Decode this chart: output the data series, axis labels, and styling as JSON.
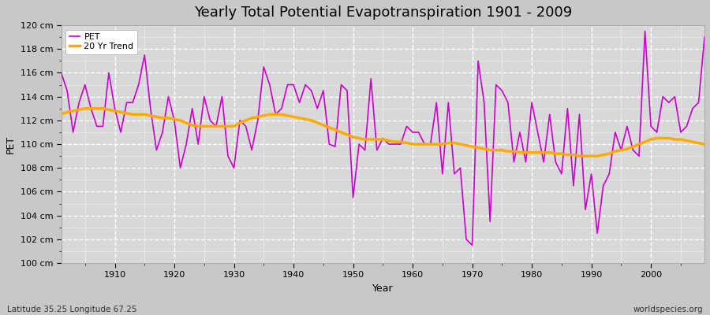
{
  "title": "Yearly Total Potential Evapotranspiration 1901 - 2009",
  "xlabel": "Year",
  "ylabel": "PET",
  "footnote_left": "Latitude 35.25 Longitude 67.25",
  "footnote_right": "worldspecies.org",
  "ylim": [
    100,
    120
  ],
  "ytick_labels": [
    "100 cm",
    "102 cm",
    "104 cm",
    "106 cm",
    "108 cm",
    "110 cm",
    "112 cm",
    "114 cm",
    "116 cm",
    "118 cm",
    "120 cm"
  ],
  "ytick_values": [
    100,
    102,
    104,
    106,
    108,
    110,
    112,
    114,
    116,
    118,
    120
  ],
  "pet_color": "#cc00cc",
  "trend_color": "#ffaa00",
  "outer_bg": "#c8c8c8",
  "plot_bg": "#d8d8d8",
  "grid_color": "#ffffff",
  "years": [
    1901,
    1902,
    1903,
    1904,
    1905,
    1906,
    1907,
    1908,
    1909,
    1910,
    1911,
    1912,
    1913,
    1914,
    1915,
    1916,
    1917,
    1918,
    1919,
    1920,
    1921,
    1922,
    1923,
    1924,
    1925,
    1926,
    1927,
    1928,
    1929,
    1930,
    1931,
    1932,
    1933,
    1934,
    1935,
    1936,
    1937,
    1938,
    1939,
    1940,
    1941,
    1942,
    1943,
    1944,
    1945,
    1946,
    1947,
    1948,
    1949,
    1950,
    1951,
    1952,
    1953,
    1954,
    1955,
    1956,
    1957,
    1958,
    1959,
    1960,
    1961,
    1962,
    1963,
    1964,
    1965,
    1966,
    1967,
    1968,
    1969,
    1970,
    1971,
    1972,
    1973,
    1974,
    1975,
    1976,
    1977,
    1978,
    1979,
    1980,
    1981,
    1982,
    1983,
    1984,
    1985,
    1986,
    1987,
    1988,
    1989,
    1990,
    1991,
    1992,
    1993,
    1994,
    1995,
    1996,
    1997,
    1998,
    1999,
    2000,
    2001,
    2002,
    2003,
    2004,
    2005,
    2006,
    2007,
    2008,
    2009
  ],
  "pet_values": [
    116.0,
    114.5,
    111.0,
    113.5,
    115.0,
    113.0,
    111.5,
    111.5,
    116.0,
    113.0,
    111.0,
    113.5,
    113.5,
    115.0,
    117.5,
    113.0,
    109.5,
    111.0,
    114.0,
    112.0,
    108.0,
    110.0,
    113.0,
    110.0,
    114.0,
    112.0,
    111.5,
    114.0,
    109.0,
    108.0,
    112.0,
    111.5,
    109.5,
    112.0,
    116.5,
    115.0,
    112.5,
    113.0,
    115.0,
    115.0,
    113.5,
    115.0,
    114.5,
    113.0,
    114.5,
    110.0,
    109.8,
    115.0,
    114.5,
    105.5,
    110.0,
    109.5,
    115.5,
    109.5,
    110.5,
    110.0,
    110.0,
    110.0,
    111.5,
    111.0,
    111.0,
    110.0,
    110.0,
    113.5,
    107.5,
    113.5,
    107.5,
    108.0,
    102.0,
    101.5,
    117.0,
    113.5,
    103.5,
    115.0,
    114.5,
    113.5,
    108.5,
    111.0,
    108.5,
    113.5,
    111.0,
    108.5,
    112.5,
    108.5,
    107.5,
    113.0,
    106.5,
    112.5,
    104.5,
    107.5,
    102.5,
    106.5,
    107.5,
    111.0,
    109.5,
    111.5,
    109.5,
    109.0,
    119.5,
    111.5,
    111.0,
    114.0,
    113.5,
    114.0,
    111.0,
    111.5,
    113.0,
    113.5,
    119.0
  ],
  "trend_values": [
    112.5,
    112.7,
    112.8,
    112.9,
    113.0,
    113.0,
    113.0,
    113.0,
    112.9,
    112.8,
    112.7,
    112.6,
    112.5,
    112.5,
    112.5,
    112.4,
    112.3,
    112.2,
    112.2,
    112.1,
    112.0,
    111.8,
    111.6,
    111.5,
    111.5,
    111.5,
    111.5,
    111.5,
    111.5,
    111.5,
    111.8,
    112.0,
    112.2,
    112.3,
    112.4,
    112.5,
    112.5,
    112.5,
    112.4,
    112.3,
    112.2,
    112.1,
    112.0,
    111.8,
    111.6,
    111.4,
    111.2,
    111.0,
    110.8,
    110.6,
    110.5,
    110.4,
    110.4,
    110.4,
    110.4,
    110.3,
    110.2,
    110.2,
    110.1,
    110.0,
    110.0,
    110.0,
    110.0,
    110.0,
    110.0,
    110.1,
    110.1,
    110.0,
    109.9,
    109.8,
    109.7,
    109.6,
    109.5,
    109.5,
    109.5,
    109.4,
    109.4,
    109.3,
    109.3,
    109.3,
    109.3,
    109.3,
    109.3,
    109.2,
    109.2,
    109.1,
    109.1,
    109.0,
    109.0,
    109.0,
    109.0,
    109.1,
    109.2,
    109.4,
    109.5,
    109.6,
    109.8,
    110.0,
    110.2,
    110.4,
    110.5,
    110.5,
    110.5,
    110.4,
    110.4,
    110.3,
    110.2,
    110.1,
    110.0
  ],
  "xticks": [
    1910,
    1920,
    1930,
    1940,
    1950,
    1960,
    1970,
    1980,
    1990,
    2000
  ],
  "title_fontsize": 13,
  "axis_fontsize": 9,
  "tick_fontsize": 8,
  "footnote_fontsize": 7.5
}
